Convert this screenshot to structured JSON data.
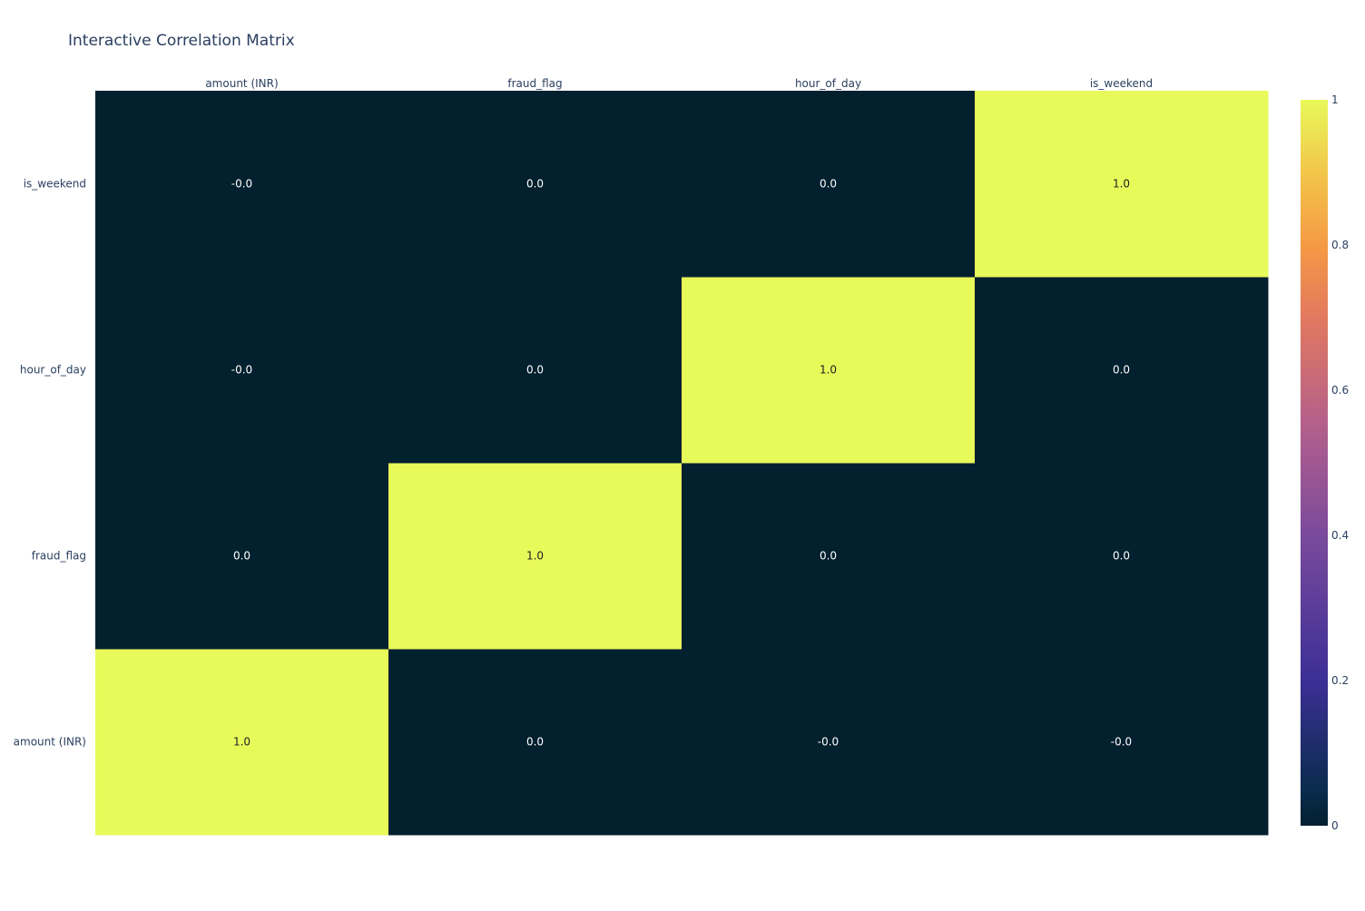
{
  "chart_data": {
    "type": "heatmap",
    "title": "Interactive Correlation Matrix",
    "x": [
      "amount (INR)",
      "fraud_flag",
      "hour_of_day",
      "is_weekend"
    ],
    "y": [
      "amount (INR)",
      "fraud_flag",
      "hour_of_day",
      "is_weekend"
    ],
    "z": [
      [
        1.0,
        0.0,
        -0.0,
        -0.0
      ],
      [
        0.0,
        1.0,
        0.0,
        0.0
      ],
      [
        -0.0,
        0.0,
        1.0,
        0.0
      ],
      [
        -0.0,
        0.0,
        0.0,
        1.0
      ]
    ],
    "text": [
      [
        "1.0",
        "0.0",
        "-0.0",
        "-0.0"
      ],
      [
        "0.0",
        "1.0",
        "0.0",
        "0.0"
      ],
      [
        "-0.0",
        "0.0",
        "1.0",
        "0.0"
      ],
      [
        "-0.0",
        "0.0",
        "0.0",
        "1.0"
      ]
    ],
    "xaxis_side": "top",
    "zmin": 0,
    "zmax": 1,
    "colorscale": [
      [
        0.0,
        "#0d0887"
      ],
      [
        0.111,
        "#46039f"
      ],
      [
        0.222,
        "#7201a8"
      ],
      [
        0.333,
        "#9c179e"
      ],
      [
        0.444,
        "#bd3786"
      ],
      [
        0.556,
        "#d8576b"
      ],
      [
        0.667,
        "#ed7953"
      ],
      [
        0.778,
        "#fb9f3a"
      ],
      [
        0.889,
        "#fdca26"
      ],
      [
        1.0,
        "#f0f921"
      ]
    ],
    "display_colorscale": [
      [
        0.0,
        "#03202f"
      ],
      [
        0.05,
        "#0a2c4e"
      ],
      [
        0.2,
        "#3c2f96"
      ],
      [
        0.4,
        "#7a4a9c"
      ],
      [
        0.55,
        "#b35f8c"
      ],
      [
        0.7,
        "#e2795f"
      ],
      [
        0.8,
        "#f59a44"
      ],
      [
        0.9,
        "#f2c64a"
      ],
      [
        1.0,
        "#e8f95a"
      ]
    ],
    "colorbar": {
      "tickvals": [
        0,
        0.2,
        0.4,
        0.6,
        0.8,
        1
      ],
      "ticktext": [
        "0",
        "0.2",
        "0.4",
        "0.6",
        "0.8",
        "1"
      ]
    },
    "low_text_color": "#ffffff",
    "high_text_color": "#222222"
  }
}
